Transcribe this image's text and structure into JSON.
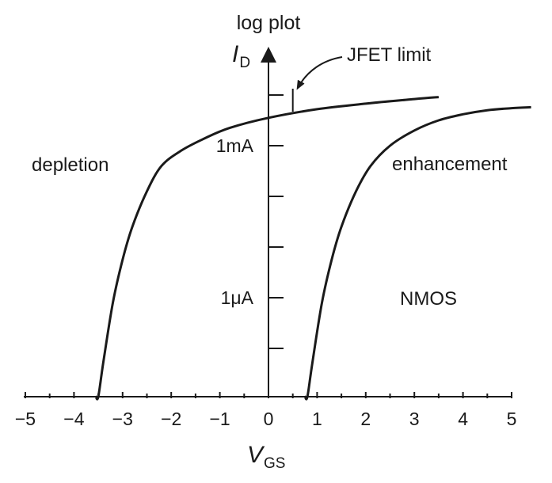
{
  "chart_data": {
    "type": "line",
    "title": "log plot",
    "xlabel": {
      "main": "V",
      "sub": "GS"
    },
    "ylabel": {
      "main": "I",
      "sub": "D"
    },
    "x_ticks": [
      "−5",
      "−4",
      "−3",
      "−2",
      "−1",
      "0",
      "1",
      "2",
      "3",
      "4",
      "5"
    ],
    "y_ticks": [
      "1μA",
      "1mA"
    ],
    "y_scale": "log",
    "xlim": [
      -5,
      5.4
    ],
    "grid": false,
    "series": [
      {
        "label": "depletion",
        "x": [
          -3.55,
          -3.5,
          -3.4,
          -3.2,
          -3.0,
          -2.8,
          -2.5,
          -2.2,
          -1.8,
          -1.3,
          -0.8,
          0,
          1,
          2,
          3,
          3.5
        ],
        "log10_I_amps": [
          -9.65,
          -8.3,
          -7.3,
          -6.1,
          -5.25,
          -4.6,
          -3.9,
          -3.4,
          -3.1,
          -2.85,
          -2.65,
          -2.45,
          -2.28,
          -2.17,
          -2.08,
          -2.04
        ]
      },
      {
        "label": "enhancement",
        "x": [
          0.75,
          0.8,
          0.9,
          1.1,
          1.3,
          1.5,
          1.8,
          2.1,
          2.5,
          3.0,
          3.5,
          4.0,
          4.5,
          5.0,
          5.4
        ],
        "log10_I_amps": [
          -9.65,
          -8.3,
          -7.3,
          -6.1,
          -5.25,
          -4.6,
          -3.9,
          -3.4,
          -3.0,
          -2.7,
          -2.5,
          -2.38,
          -2.3,
          -2.26,
          -2.24
        ]
      }
    ],
    "annotations": [
      "depletion",
      "enhancement",
      "NMOS",
      "JFET limit"
    ],
    "jfet_limit_x": 0.5
  }
}
